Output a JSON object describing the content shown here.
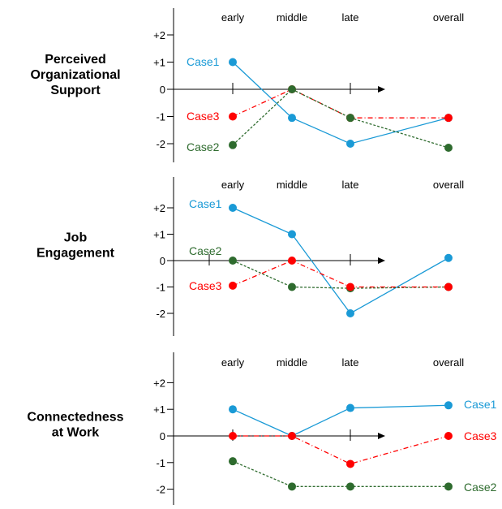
{
  "colors": {
    "Case1": "#1a9ad6",
    "Case2": "#2e6b2e",
    "Case3": "#ff0000"
  },
  "chart_data": [
    {
      "type": "line",
      "title": "Perceived Organizational Support",
      "title_lines": [
        "Perceived",
        "Organizational",
        "Support"
      ],
      "categories": [
        "early",
        "middle",
        "late",
        "overall"
      ],
      "ytick_labels": [
        "+2",
        "+1",
        "0",
        "-1",
        "-2"
      ],
      "ylim": [
        -2.5,
        2.5
      ],
      "series": [
        {
          "name": "Case1",
          "values": [
            1,
            -1.05,
            -2,
            -1.05
          ]
        },
        {
          "name": "Case3",
          "values": [
            -1,
            0,
            -1.05,
            -1.05
          ]
        },
        {
          "name": "Case2",
          "values": [
            -2.05,
            0,
            -1.05,
            -2.15
          ]
        }
      ]
    },
    {
      "type": "line",
      "title": "Job Engagement",
      "title_lines": [
        "Job",
        "Engagement"
      ],
      "categories": [
        "early",
        "middle",
        "late",
        "overall"
      ],
      "ytick_labels": [
        "+2",
        "+1",
        "0",
        "-1",
        "-2"
      ],
      "ylim": [
        -2.5,
        2.5
      ],
      "series": [
        {
          "name": "Case1",
          "values": [
            2,
            1,
            -2,
            0.1
          ]
        },
        {
          "name": "Case2",
          "values": [
            0,
            -1,
            -1.05,
            -1
          ]
        },
        {
          "name": "Case3",
          "values": [
            -0.95,
            0,
            -1,
            -1
          ]
        }
      ]
    },
    {
      "type": "line",
      "title": "Connectedness at Work",
      "title_lines": [
        "Connectedness",
        "at Work"
      ],
      "categories": [
        "early",
        "middle",
        "late",
        "overall"
      ],
      "ytick_labels": [
        "+2",
        "+1",
        "0",
        "-1",
        "-2"
      ],
      "ylim": [
        -2.5,
        2.5
      ],
      "series": [
        {
          "name": "Case1",
          "values": [
            1,
            0,
            1.05,
            1.15
          ]
        },
        {
          "name": "Case3",
          "values": [
            0,
            0,
            -1.05,
            0
          ]
        },
        {
          "name": "Case2",
          "values": [
            -0.95,
            -1.9,
            -1.9,
            -1.9
          ]
        }
      ]
    }
  ]
}
